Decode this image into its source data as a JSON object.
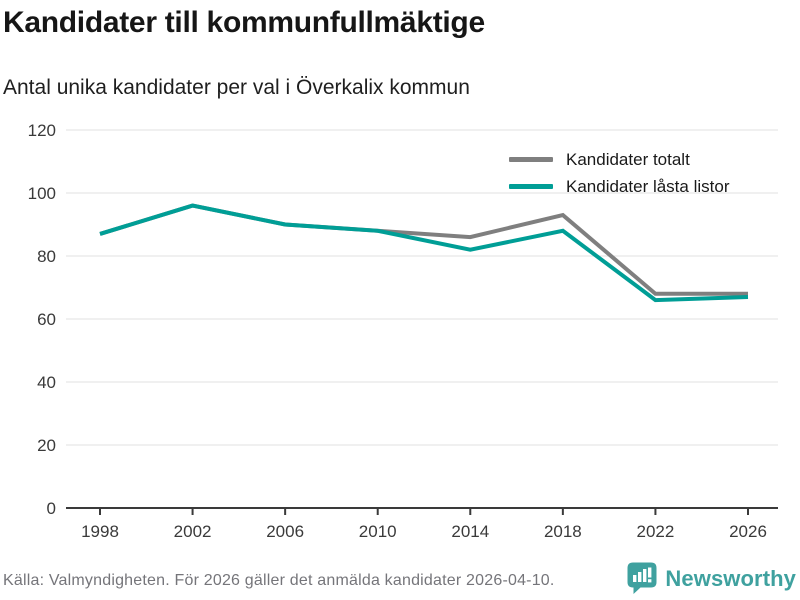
{
  "header": {
    "title": "Kandidater till kommunfullmäktige",
    "subtitle": "Antal unika kandidater per val i Överkalix kommun"
  },
  "chart_data": {
    "type": "line",
    "title": "Kandidater till kommunfullmäktige",
    "subtitle": "Antal unika kandidater per val i Överkalix kommun",
    "x": [
      1998,
      2002,
      2006,
      2010,
      2014,
      2018,
      2022,
      2026
    ],
    "series": [
      {
        "name": "Kandidater totalt",
        "color": "#7f7f7f",
        "values": [
          87,
          96,
          90,
          88,
          86,
          93,
          68,
          68
        ]
      },
      {
        "name": "Kandidater låsta listor",
        "color": "#009e96",
        "values": [
          87,
          96,
          90,
          88,
          82,
          88,
          66,
          67
        ]
      }
    ],
    "ylim": [
      0,
      120
    ],
    "yticks": [
      0,
      20,
      40,
      60,
      80,
      100,
      120
    ],
    "grid": true,
    "legend_position": "top-right",
    "xlabel": "",
    "ylabel": ""
  },
  "footer": {
    "source": "Källa: Valmyndigheten. För 2026 gäller det anmälda kandidater 2026-04-10."
  },
  "branding": {
    "logo_text": "Newsworthy",
    "logo_icon": "speech-bubble-bar-chart-icon",
    "logo_color": "#3fa19f"
  },
  "colors": {
    "grid": "#e2e2e2",
    "axis": "#3a3a3a",
    "tick_label": "#3a3a3a",
    "line_width": 4
  }
}
